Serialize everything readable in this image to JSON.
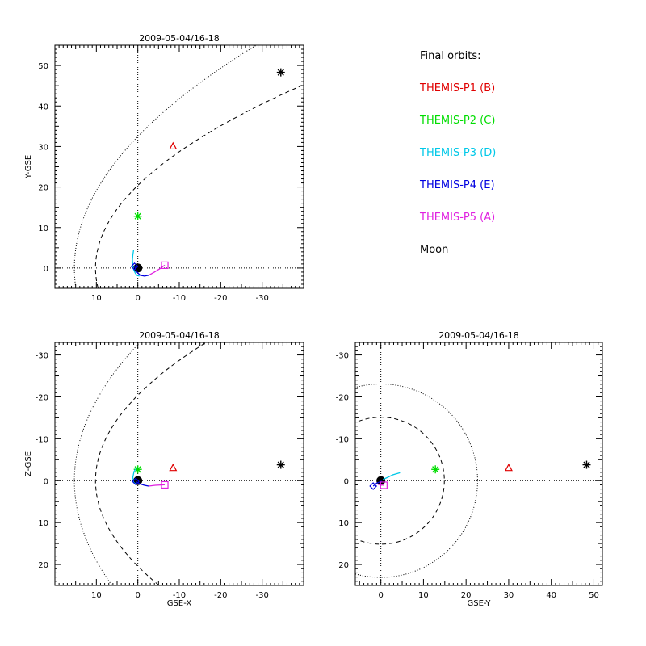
{
  "chart_data": [
    {
      "type": "scatter",
      "title": "2009-05-04/16-18",
      "xlabel": "",
      "ylabel": "Y-GSE",
      "xlim": [
        20,
        -40
      ],
      "ylim": [
        55,
        -5
      ],
      "xticks": [
        10,
        0,
        -10,
        -20,
        -30
      ],
      "yticks": [
        0,
        10,
        20,
        30,
        40,
        50
      ],
      "series": [
        {
          "name": "THEMIS-P1 (B)",
          "marker": "triangle",
          "color": "#e00000",
          "x": [
            -8.5
          ],
          "y": [
            30
          ]
        },
        {
          "name": "THEMIS-P2 (C)",
          "marker": "star",
          "color": "#00dd00",
          "x": [
            0
          ],
          "y": [
            12.8
          ]
        },
        {
          "name": "THEMIS-P3 (D)",
          "marker": "orbit",
          "color": "#00c8e8",
          "x": [
            1,
            1.2,
            1.3,
            1.2,
            1.0,
            0.6,
            0.2,
            -0.4
          ],
          "y": [
            4.5,
            3.2,
            2.0,
            0.7,
            -0.4,
            -1.3,
            -1.8,
            -2.0
          ]
        },
        {
          "name": "THEMIS-P4 (E)",
          "marker": "diamond",
          "color": "#0000e0",
          "x": [
            0.8,
            0.2,
            -0.6,
            -1.6,
            -2.6
          ],
          "y": [
            0.4,
            -1.0,
            -1.8,
            -2.0,
            -1.8
          ]
        },
        {
          "name": "THEMIS-P5 (A)",
          "marker": "square",
          "color": "#e020e0",
          "x": [
            -2.6,
            -4.0,
            -5.4,
            -6.5
          ],
          "y": [
            -1.8,
            -1.0,
            -0.1,
            0.7
          ]
        },
        {
          "name": "Moon",
          "marker": "asterisk",
          "color": "#000000",
          "x": [
            -34.5
          ],
          "y": [
            48.3
          ]
        }
      ]
    },
    {
      "type": "scatter",
      "title": "2009-05-04/16-18",
      "xlabel": "GSE-X",
      "ylabel": "Z-GSE",
      "xlim": [
        20,
        -40
      ],
      "ylim": [
        -33,
        25
      ],
      "xticks": [
        10,
        0,
        -10,
        -20,
        -30
      ],
      "yticks": [
        20,
        10,
        0,
        -10,
        -20,
        -30
      ],
      "series": [
        {
          "name": "THEMIS-P1 (B)",
          "marker": "triangle",
          "color": "#e00000",
          "x": [
            -8.5
          ],
          "y": [
            -3
          ]
        },
        {
          "name": "THEMIS-P2 (C)",
          "marker": "star",
          "color": "#00dd00",
          "x": [
            0
          ],
          "y": [
            -2.7
          ]
        },
        {
          "name": "THEMIS-P3 (D)",
          "marker": "orbit",
          "color": "#00c8e8",
          "x": [
            0.2,
            0.9,
            1.2,
            1.0,
            0.5
          ],
          "y": [
            -3.2,
            -2.2,
            -0.8,
            0.4,
            0.8
          ]
        },
        {
          "name": "THEMIS-P4 (E)",
          "marker": "diamond",
          "color": "#0000e0",
          "x": [
            0.5,
            -0.6,
            -1.6,
            -2.6
          ],
          "y": [
            0.2,
            0.8,
            1.1,
            1.3
          ]
        },
        {
          "name": "THEMIS-P5 (A)",
          "marker": "square",
          "color": "#e020e0",
          "x": [
            -2.6,
            -4.2,
            -6.5
          ],
          "y": [
            1.3,
            1.1,
            1.0
          ]
        },
        {
          "name": "Moon",
          "marker": "asterisk",
          "color": "#000000",
          "x": [
            -34.5
          ],
          "y": [
            -3.8
          ]
        }
      ]
    },
    {
      "type": "scatter",
      "title": "2009-05-04/16-18",
      "xlabel": "GSE-Y",
      "ylabel": "",
      "xlim": [
        -6,
        52
      ],
      "ylim": [
        -33,
        25
      ],
      "xticks": [
        0,
        10,
        20,
        30,
        40,
        50
      ],
      "yticks": [
        20,
        10,
        0,
        -10,
        -20,
        -30
      ],
      "series": [
        {
          "name": "THEMIS-P1 (B)",
          "marker": "triangle",
          "color": "#e00000",
          "x": [
            30
          ],
          "y": [
            -3
          ]
        },
        {
          "name": "THEMIS-P2 (C)",
          "marker": "star",
          "color": "#00dd00",
          "x": [
            12.8
          ],
          "y": [
            -2.7
          ]
        },
        {
          "name": "THEMIS-P3 (D)",
          "marker": "orbit",
          "color": "#00c8e8",
          "x": [
            0.5,
            1.6,
            2.8,
            4.5
          ],
          "y": [
            -0.3,
            -0.8,
            -1.4,
            -1.9
          ]
        },
        {
          "name": "THEMIS-P4 (E)",
          "marker": "diamond",
          "color": "#0000e0",
          "x": [
            -1.8,
            -1.0,
            0.2
          ],
          "y": [
            1.3,
            0.6,
            0.1
          ]
        },
        {
          "name": "THEMIS-P5 (A)",
          "marker": "square",
          "color": "#e020e0",
          "x": [
            -0.7,
            0.7
          ],
          "y": [
            0.9,
            1.1
          ]
        },
        {
          "name": "Moon",
          "marker": "asterisk",
          "color": "#000000",
          "x": [
            48.3
          ],
          "y": [
            -3.8
          ]
        }
      ]
    }
  ],
  "legend": {
    "title": "Final orbits:",
    "items": [
      {
        "label": "THEMIS-P1 (B)",
        "color": "#e00000"
      },
      {
        "label": "THEMIS-P2 (C)",
        "color": "#00dd00"
      },
      {
        "label": "THEMIS-P3 (D)",
        "color": "#00c8e8"
      },
      {
        "label": "THEMIS-P4 (E)",
        "color": "#0000e0"
      },
      {
        "label": "THEMIS-P5 (A)",
        "color": "#e020e0"
      },
      {
        "label": "Moon",
        "color": "#000000"
      }
    ]
  }
}
